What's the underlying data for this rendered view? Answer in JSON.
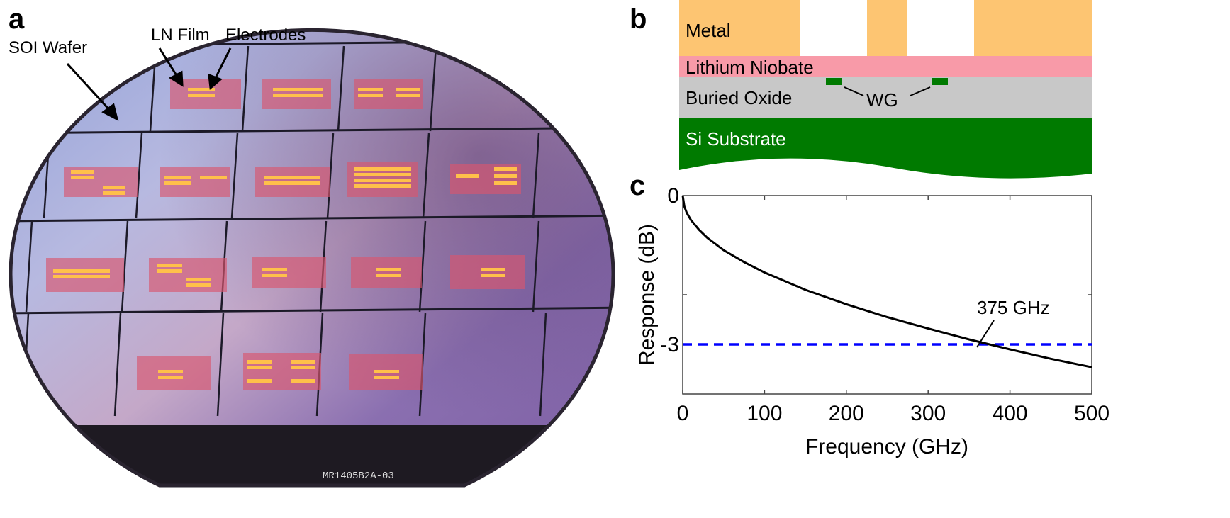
{
  "panel_a": {
    "letter": "a",
    "labels": {
      "soi_wafer": "SOI Wafer",
      "ln_film": "LN Film",
      "electrodes": "Electrodes"
    },
    "wafer_marking": "MR1405B2A-03"
  },
  "panel_b": {
    "letter": "b",
    "layers": {
      "metal": "Metal",
      "lithium_niobate": "Lithium Niobate",
      "buried_oxide": "Buried Oxide",
      "waveguide": "WG",
      "substrate": "Si Substrate"
    },
    "colors": {
      "metal": "#fdc572",
      "lithium_niobate": "#f89aa8",
      "buried_oxide": "#c8c8c8",
      "waveguide": "#007a00",
      "substrate": "#007a00"
    }
  },
  "chart_data": {
    "letter": "c",
    "type": "line",
    "xlabel": "Frequency (GHz)",
    "ylabel": "Response (dB)",
    "xlim": [
      0,
      500
    ],
    "ylim": [
      -4,
      0
    ],
    "xticks": [
      0,
      100,
      200,
      300,
      400,
      500
    ],
    "yticks_labeled": [
      0,
      -3
    ],
    "grid": false,
    "series": [
      {
        "color": "#000000",
        "x": [
          0,
          2,
          5,
          10,
          20,
          30,
          50,
          75,
          100,
          150,
          200,
          250,
          300,
          350,
          375,
          400,
          450,
          500
        ],
        "y": [
          0,
          -0.22,
          -0.35,
          -0.49,
          -0.69,
          -0.85,
          -1.1,
          -1.34,
          -1.55,
          -1.9,
          -2.19,
          -2.45,
          -2.68,
          -2.9,
          -3.0,
          -3.1,
          -3.29,
          -3.46
        ]
      }
    ],
    "reference_line": {
      "y": -3,
      "color": "#0000ff",
      "style": "dashed"
    },
    "annotation": {
      "text": "375 GHz",
      "x": 375,
      "y": -3
    }
  }
}
